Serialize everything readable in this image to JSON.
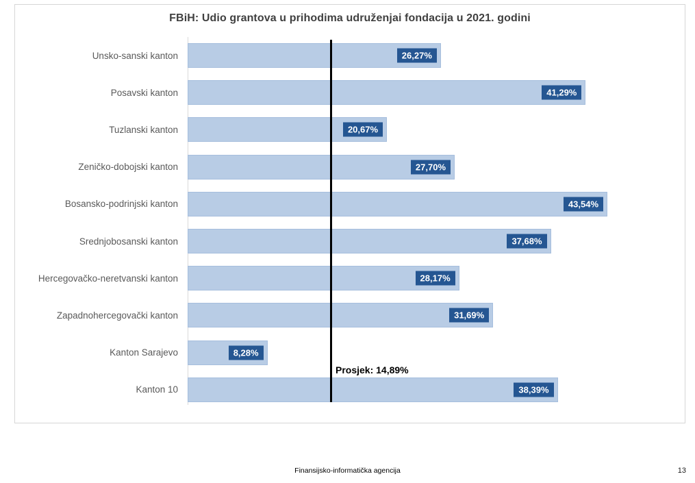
{
  "chart_data": {
    "type": "bar",
    "orientation": "horizontal",
    "title": "FBiH: Udio grantova u prihodima udruženjai fondacija u 2021. godini",
    "categories": [
      "Unsko-sanski kanton",
      "Posavski kanton",
      "Tuzlanski kanton",
      "Zeničko-dobojski kanton",
      "Bosansko-podrinjski kanton",
      "Srednjobosanski kanton",
      "Hercegovačko-neretvanski kanton",
      "Zapadnohercegovački kanton",
      "Kanton Sarajevo",
      "Kanton 10"
    ],
    "values": [
      26.27,
      41.29,
      20.67,
      27.7,
      43.54,
      37.68,
      28.17,
      31.69,
      8.28,
      38.39
    ],
    "value_labels": [
      "26,27%",
      "41,29%",
      "20,67%",
      "27,70%",
      "43,54%",
      "37,68%",
      "28,17%",
      "31,69%",
      "8,28%",
      "38,39%"
    ],
    "average": {
      "label": "Prosjek: 14,89%",
      "value": 14.89
    },
    "xlim": [
      0,
      50
    ],
    "grid": false,
    "legend": false,
    "bar_color": "#b8cce5",
    "bar_border_color": "#a6bedd",
    "label_box_color": "#255692",
    "label_text_color": "#ffffff",
    "average_line_color": "#000000",
    "title_color": "#404040",
    "category_label_color": "#595959"
  },
  "footer": {
    "agency": "Finansijsko-informatička agencija",
    "page_number": "13"
  }
}
